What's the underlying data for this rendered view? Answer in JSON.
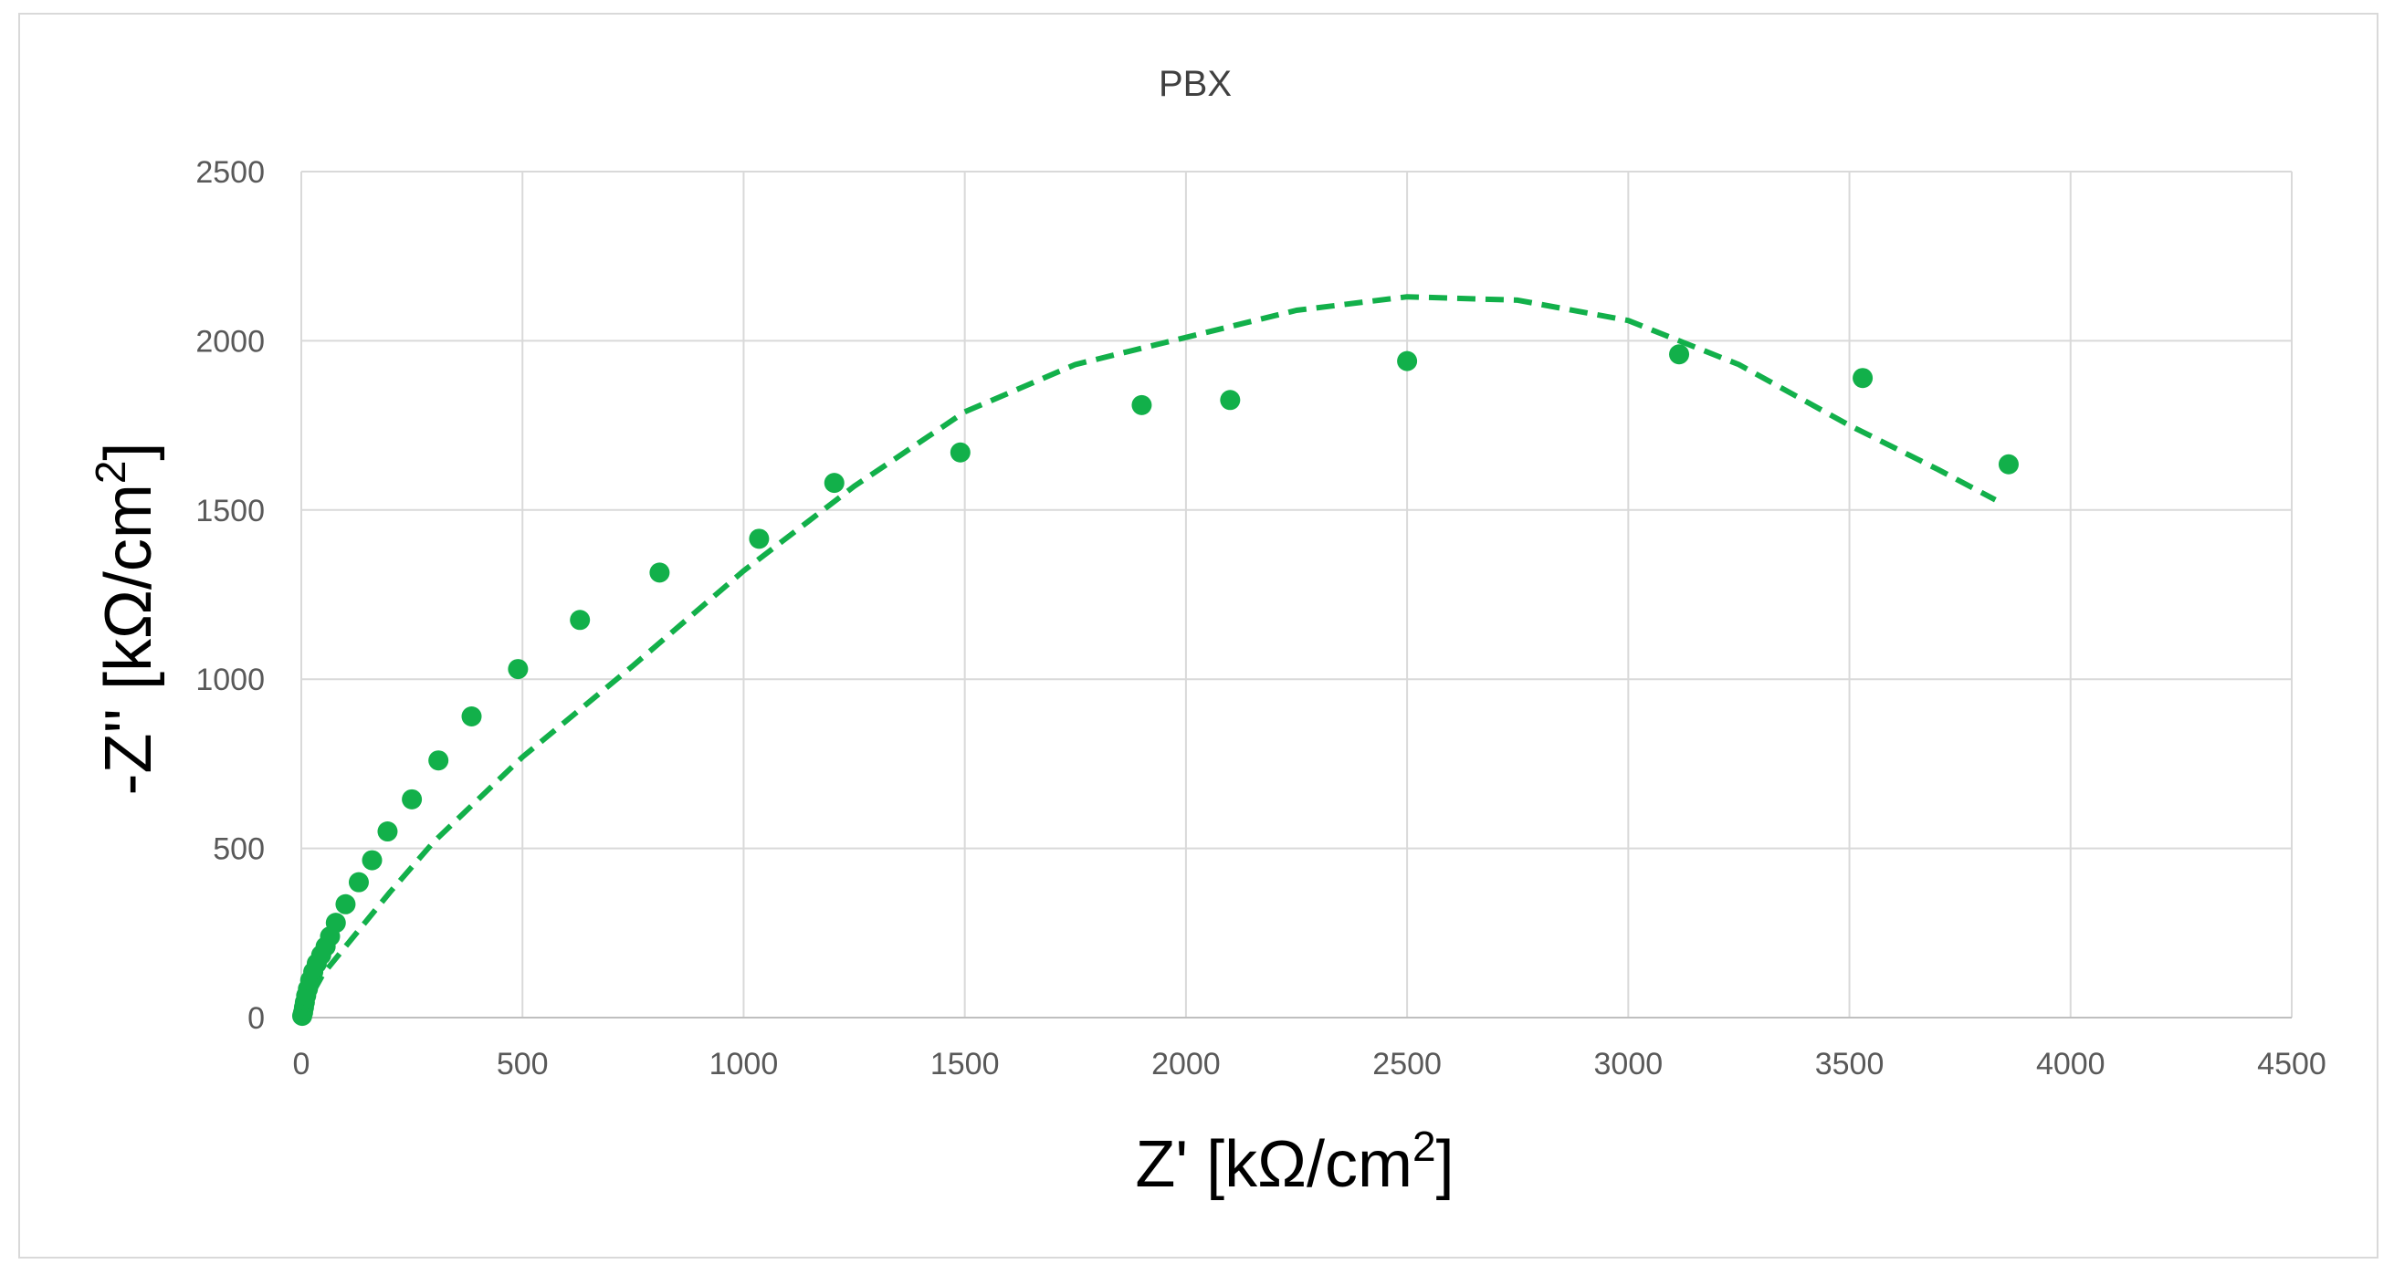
{
  "chart_data": {
    "type": "scatter",
    "title": "PBX",
    "xlabel": "Z' [kΩ/cm²]",
    "ylabel": "-Z'' [kΩ/cm²]",
    "xlabel_parts": {
      "text": "Z' [kΩ/cm",
      "sup": "2",
      "end": "]"
    },
    "ylabel_parts": {
      "text": "-Z'' [kΩ/cm",
      "sup": "2",
      "end": "]"
    },
    "xlim": [
      0,
      4500
    ],
    "ylim": [
      0,
      2500
    ],
    "x_ticks": [
      0,
      500,
      1000,
      1500,
      2000,
      2500,
      3000,
      3500,
      4000,
      4500
    ],
    "y_ticks": [
      0,
      500,
      1000,
      1500,
      2000,
      2500
    ],
    "grid": true,
    "color": "#12b04a",
    "series": [
      {
        "style": "markers",
        "x": [
          2,
          4,
          6,
          8,
          11,
          15,
          20,
          27,
          35,
          45,
          55,
          65,
          78,
          100,
          130,
          160,
          195,
          250,
          310,
          385,
          490,
          630,
          810,
          1035,
          1205,
          1490,
          1900,
          2100,
          2500,
          3115,
          3530,
          3860
        ],
        "y": [
          5,
          15,
          30,
          45,
          65,
          85,
          110,
          135,
          160,
          185,
          210,
          240,
          280,
          335,
          400,
          465,
          550,
          645,
          760,
          890,
          1030,
          1175,
          1315,
          1415,
          1580,
          1670,
          1810,
          1825,
          1940,
          1960,
          1890,
          1635
        ]
      },
      {
        "style": "dashed-line",
        "x": [
          0,
          20,
          50,
          100,
          200,
          300,
          500,
          750,
          1000,
          1250,
          1500,
          1750,
          2000,
          2250,
          2500,
          2750,
          3000,
          3250,
          3500,
          3700,
          3830
        ],
        "y": [
          0,
          60,
          130,
          210,
          370,
          520,
          770,
          1040,
          1320,
          1570,
          1790,
          1930,
          2010,
          2090,
          2130,
          2120,
          2060,
          1930,
          1750,
          1620,
          1530
        ]
      }
    ]
  }
}
